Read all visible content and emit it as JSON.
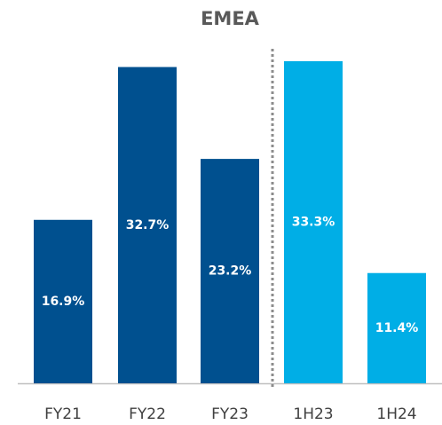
{
  "chart_data": {
    "type": "bar",
    "title": "EMEA",
    "categories": [
      "FY21",
      "FY22",
      "FY23",
      "1H23",
      "1H24"
    ],
    "values": [
      16.9,
      32.7,
      23.2,
      33.3,
      11.4
    ],
    "value_labels": [
      "16.9%",
      "32.7%",
      "23.2%",
      "33.3%",
      "11.4%"
    ],
    "colors": [
      "#00508f",
      "#00508f",
      "#00508f",
      "#00aee6",
      "#00aee6"
    ]
  }
}
